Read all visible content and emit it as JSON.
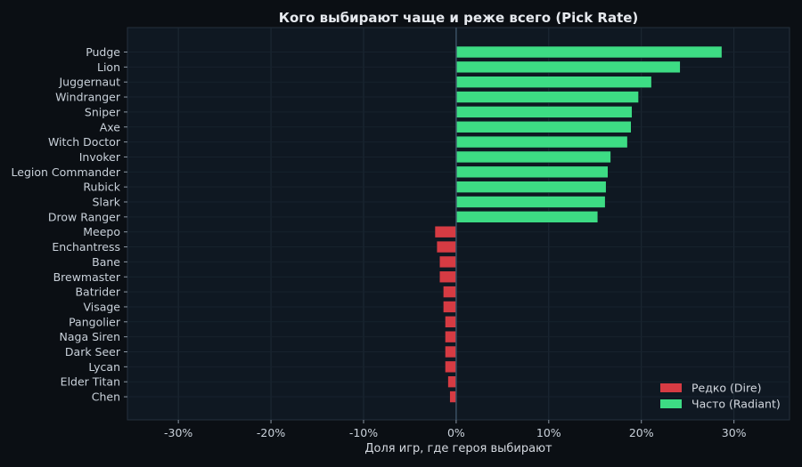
{
  "chart_data": {
    "type": "bar",
    "orientation": "horizontal",
    "title": "Кого выбирают чаще и реже всего (Pick Rate)",
    "xlabel": "Доля игр, где героя выбирают",
    "ylabel": "",
    "xlim": [
      -35.5,
      36.0
    ],
    "xticks": [
      -30,
      -20,
      -10,
      0,
      10,
      20,
      30
    ],
    "xtick_labels": [
      "-30%",
      "-20%",
      "-10%",
      "0%",
      "10%",
      "20%",
      "30%"
    ],
    "grid": true,
    "legend_position": "bottom-right",
    "categories": [
      "Pudge",
      "Lion",
      "Juggernaut",
      "Windranger",
      "Sniper",
      "Axe",
      "Witch Doctor",
      "Invoker",
      "Legion Commander",
      "Rubick",
      "Slark",
      "Drow Ranger",
      "Meepo",
      "Enchantress",
      "Bane",
      "Brewmaster",
      "Batrider",
      "Visage",
      "Pangolier",
      "Naga Siren",
      "Dark Seer",
      "Lycan",
      "Elder Titan",
      "Chen"
    ],
    "series": [
      {
        "name": "Редко (Dire)",
        "color": "#d63b43",
        "values": [
          null,
          null,
          null,
          null,
          null,
          null,
          null,
          null,
          null,
          null,
          null,
          null,
          -2.3,
          -2.1,
          -1.8,
          -1.8,
          -1.4,
          -1.4,
          -1.2,
          -1.2,
          -1.2,
          -1.2,
          -0.9,
          -0.7
        ]
      },
      {
        "name": "Часто (Radiant)",
        "color": "#3ddc84",
        "values": [
          28.7,
          24.2,
          21.1,
          19.7,
          19.0,
          18.9,
          18.5,
          16.7,
          16.4,
          16.2,
          16.1,
          15.3,
          null,
          null,
          null,
          null,
          null,
          null,
          null,
          null,
          null,
          null,
          null,
          null
        ]
      }
    ]
  }
}
